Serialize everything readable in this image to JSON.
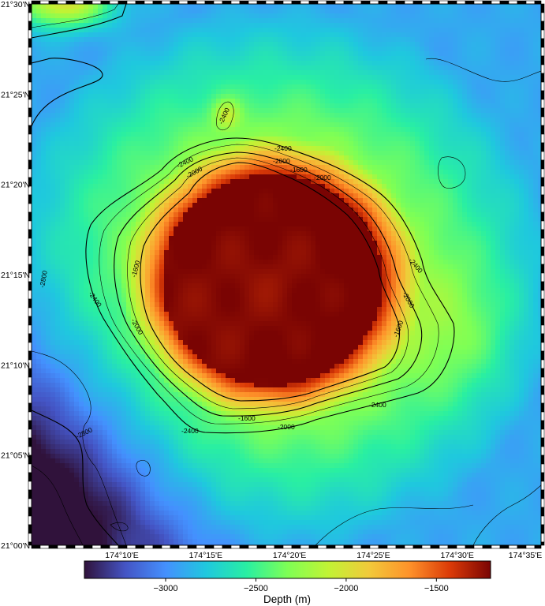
{
  "map": {
    "colormap": "turbo",
    "value_range": [
      -3450,
      -1200
    ],
    "contour_interval": 200,
    "annotated_interval": 400,
    "y_axis_ticks": [
      "21°30'N",
      "21°25'N",
      "21°20'N",
      "21°15'N",
      "21°10'N",
      "21°05'N",
      "21°00'N"
    ],
    "x_axis_ticks": [
      "174°10'E",
      "174°15'E",
      "174°20'E",
      "174°25'E",
      "174°30'E",
      "174°35'E"
    ],
    "contour_labels": [
      "-2400",
      "-2400",
      "-2000",
      "-2000",
      "-1600",
      "-2400",
      "-2000",
      "-1600",
      "-2800",
      "-2400",
      "-2000",
      "-2400",
      "-2000",
      "-1600",
      "-1600",
      "-2000",
      "-2400",
      "-2800",
      "-2400"
    ],
    "colorbar": {
      "ticks": [
        -3000,
        -2500,
        -2000,
        -1500
      ],
      "tick_labels": [
        "−3000",
        "−2500",
        "−2000",
        "−1500"
      ],
      "label": "Depth (m)"
    }
  }
}
